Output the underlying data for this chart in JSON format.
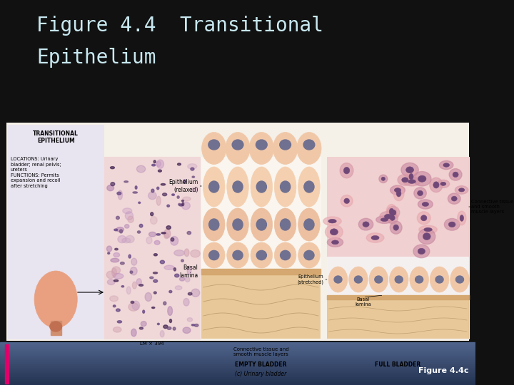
{
  "title_line1": "Figure 4.4  Transitional",
  "title_line2": "Epithelium",
  "title_color": "#c8e8f0",
  "title_fontsize": 20,
  "title_font": "monospace",
  "background_color": "#111111",
  "accent_bar_color": "#e0006a",
  "figure_label": "Figure 4.4c",
  "figure_label_color": "#ffffff",
  "figure_label_fontsize": 8,
  "bottom_bar_color1": "#2d3f5a",
  "bottom_bar_color2": "#5a7099"
}
